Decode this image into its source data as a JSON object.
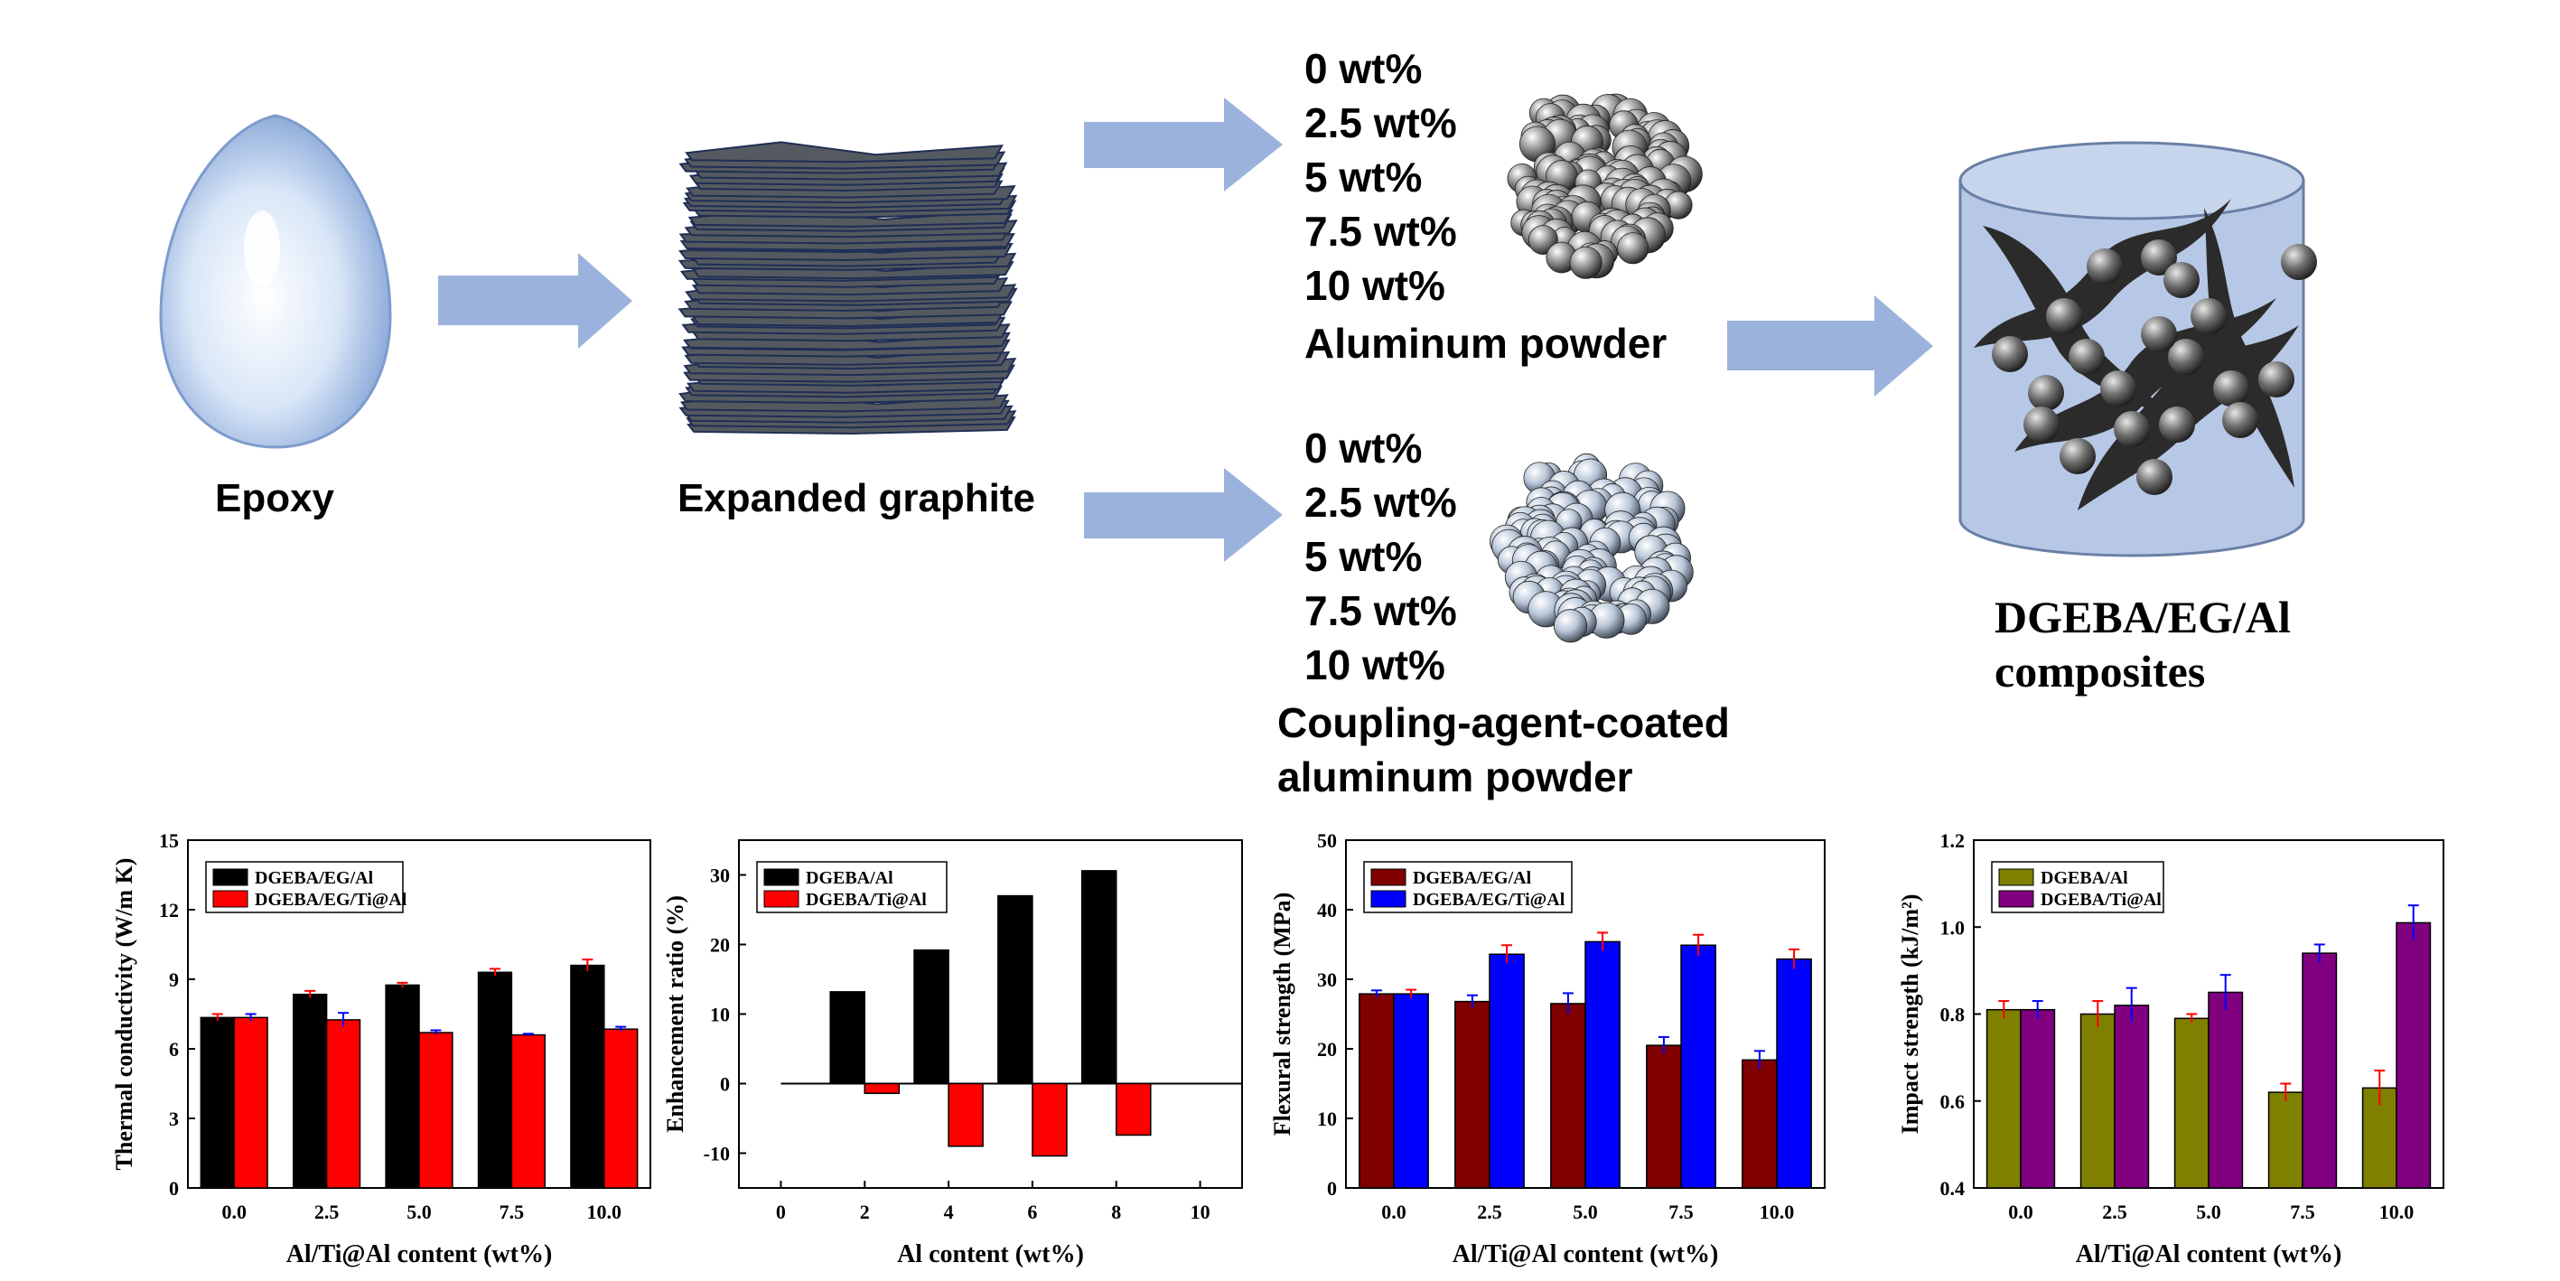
{
  "colors": {
    "arrow": "#9bb3dc",
    "graphite": "#555a60",
    "graphite_edge": "#1f2e55",
    "cylinder": "#b7c8e6",
    "black": "#000000",
    "red": "#ff0000",
    "maroon": "#800000",
    "blue": "#0000ff",
    "olive": "#808000",
    "purple": "#800080",
    "error_red": "#ff0000",
    "error_blue": "#0000ff"
  },
  "diagram": {
    "epoxy_label": "Epoxy",
    "graphite_label": "Expanded graphite",
    "aluminum": {
      "loadings": [
        "0 wt%",
        "2.5 wt%",
        "5 wt%",
        "7.5 wt%",
        "10 wt%"
      ],
      "caption": "Aluminum powder"
    },
    "coated": {
      "loadings": [
        "0 wt%",
        "2.5 wt%",
        "5 wt%",
        "7.5 wt%",
        "10 wt%"
      ],
      "caption_line1": "Coupling-agent-coated",
      "caption_line2": "aluminum powder"
    },
    "product_line1": "DGEBA/EG/Al",
    "product_line2": "composites"
  },
  "chart_data": [
    {
      "type": "bar",
      "categories": [
        "0.0",
        "2.5",
        "5.0",
        "7.5",
        "10.0"
      ],
      "series": [
        {
          "name": "DGEBA/EG/Al",
          "values": [
            7.35,
            8.35,
            8.75,
            9.3,
            9.6
          ],
          "errors": [
            0.15,
            0.15,
            0.1,
            0.15,
            0.25
          ],
          "color": "#000000",
          "error_color": "#ff0000"
        },
        {
          "name": "DGEBA/EG/Ti@Al",
          "values": [
            7.35,
            7.25,
            6.7,
            6.6,
            6.85
          ],
          "errors": [
            0.15,
            0.3,
            0.1,
            0.05,
            0.1
          ],
          "color": "#ff0000",
          "error_color": "#0000ff"
        }
      ],
      "xlabel": "Al/Ti@Al content (wt%)",
      "ylabel": "Thermal conductivity (W/m K)",
      "ylim": [
        0,
        15
      ],
      "yticks": [
        "0",
        "3",
        "6",
        "9",
        "12",
        "15"
      ],
      "legend": "top-left"
    },
    {
      "type": "bar",
      "x": [
        0,
        2,
        4,
        6,
        8,
        10
      ],
      "xticks": [
        "0",
        "2",
        "4",
        "6",
        "8",
        "10"
      ],
      "series": [
        {
          "name": "DGEBA/Al",
          "x": [
            2,
            4,
            6,
            8,
            10
          ],
          "values": [
            13.2,
            19.2,
            27,
            30.6,
            0
          ],
          "color": "#000000"
        },
        {
          "name": "DGEBA/Ti@Al",
          "x": [
            2,
            4,
            6,
            8,
            10
          ],
          "values": [
            -1.4,
            -9,
            -10.4,
            -7.4,
            0
          ],
          "color": "#ff0000"
        }
      ],
      "xlabel": "Al content (wt%)",
      "ylabel": "Enhancement ratio (%)",
      "ylim": [
        -15,
        35
      ],
      "yticks": [
        "-10",
        "0",
        "10",
        "20",
        "30"
      ],
      "legend": "top-left"
    },
    {
      "type": "bar",
      "categories": [
        "0.0",
        "2.5",
        "5.0",
        "7.5",
        "10.0"
      ],
      "series": [
        {
          "name": "DGEBA/EG/Al",
          "values": [
            27.9,
            26.8,
            26.5,
            20.5,
            18.4
          ],
          "errors": [
            0.5,
            0.9,
            1.5,
            1.2,
            1.3
          ],
          "color": "#800000",
          "error_color": "#0000ff"
        },
        {
          "name": "DGEBA/EG/Ti@Al",
          "values": [
            27.9,
            33.6,
            35.4,
            34.9,
            32.9
          ],
          "errors": [
            0.6,
            1.3,
            1.3,
            1.5,
            1.4
          ],
          "color": "#0000ff",
          "error_color": "#ff0000"
        }
      ],
      "xlabel": "Al/Ti@Al content (wt%)",
      "ylabel": "Flexural strength (MPa)",
      "ylim": [
        0,
        50
      ],
      "yticks": [
        "0",
        "10",
        "20",
        "30",
        "40",
        "50"
      ],
      "legend": "top-left"
    },
    {
      "type": "bar",
      "categories": [
        "0.0",
        "2.5",
        "5.0",
        "7.5",
        "10.0"
      ],
      "series": [
        {
          "name": "DGEBA/Al",
          "values": [
            0.81,
            0.8,
            0.79,
            0.62,
            0.63
          ],
          "errors": [
            0.02,
            0.03,
            0.01,
            0.02,
            0.04
          ],
          "color": "#808000",
          "error_color": "#ff0000"
        },
        {
          "name": "DGEBA/Ti@Al",
          "values": [
            0.81,
            0.82,
            0.85,
            0.94,
            1.01
          ],
          "errors": [
            0.02,
            0.04,
            0.04,
            0.02,
            0.04
          ],
          "color": "#800080",
          "error_color": "#0000ff"
        }
      ],
      "xlabel": "Al/Ti@Al content (wt%)",
      "ylabel": "Impact strength (kJ/m²)",
      "ylim": [
        0.4,
        1.2
      ],
      "yticks": [
        "0.4",
        "0.6",
        "0.8",
        "1.0",
        "1.2"
      ],
      "legend": "top-left"
    }
  ]
}
